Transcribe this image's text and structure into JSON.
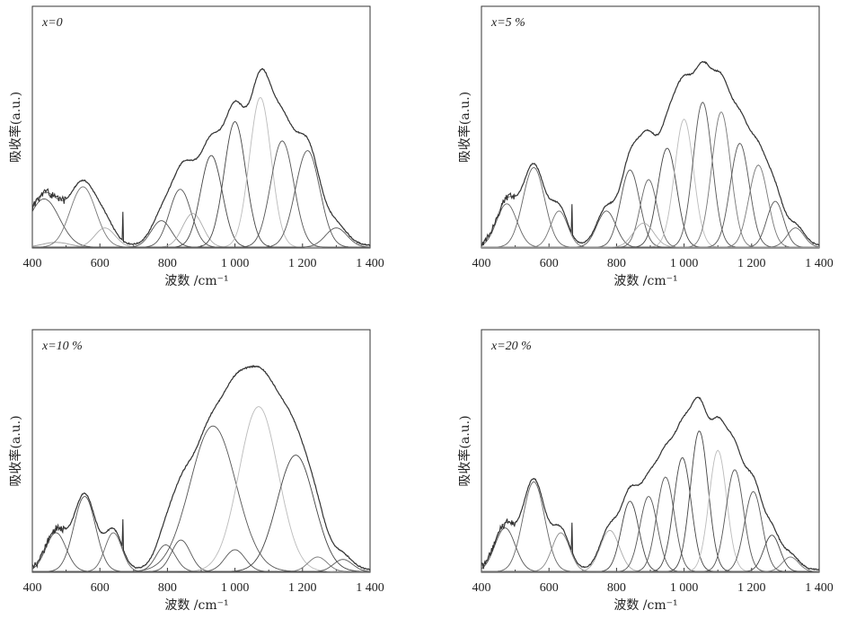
{
  "chart_data": [
    {
      "type": "line",
      "panel_label": "x=0",
      "xlabel": "波数 /cm⁻¹",
      "ylabel": "吸收率(a.u.)",
      "xlim": [
        400,
        1400
      ],
      "x_ticks": [
        400,
        600,
        800,
        1000,
        1200,
        1400
      ],
      "x_tick_labels": [
        "400",
        "600",
        "800",
        "1 000",
        "1 200",
        "1 400"
      ],
      "ylim": [
        0,
        1
      ],
      "y_ticks_shown": false,
      "fitted_peaks": [
        {
          "center": 435,
          "height": 0.2,
          "sigma": 45,
          "color": "#555555"
        },
        {
          "center": 470,
          "height": 0.02,
          "sigma": 40,
          "color": "#999999"
        },
        {
          "center": 550,
          "height": 0.25,
          "sigma": 38,
          "color": "#777777"
        },
        {
          "center": 615,
          "height": 0.08,
          "sigma": 30,
          "color": "#aaaaaa"
        },
        {
          "center": 782,
          "height": 0.11,
          "sigma": 30,
          "color": "#555555"
        },
        {
          "center": 838,
          "height": 0.24,
          "sigma": 32,
          "color": "#555555"
        },
        {
          "center": 875,
          "height": 0.14,
          "sigma": 30,
          "color": "#aaaaaa"
        },
        {
          "center": 930,
          "height": 0.38,
          "sigma": 32,
          "color": "#444444"
        },
        {
          "center": 1000,
          "height": 0.52,
          "sigma": 32,
          "color": "#444444"
        },
        {
          "center": 1075,
          "height": 0.62,
          "sigma": 32,
          "color": "#bbbbbb"
        },
        {
          "center": 1140,
          "height": 0.44,
          "sigma": 34,
          "color": "#555555"
        },
        {
          "center": 1215,
          "height": 0.4,
          "sigma": 36,
          "color": "#555555"
        },
        {
          "center": 1300,
          "height": 0.08,
          "sigma": 32,
          "color": "#555555"
        }
      ],
      "envelope_min_x": 680
    },
    {
      "type": "line",
      "panel_label": "x=5 %",
      "xlabel": "波数 /cm⁻¹",
      "ylabel": "吸收率(a.u.)",
      "xlim": [
        400,
        1400
      ],
      "x_ticks": [
        400,
        600,
        800,
        1000,
        1200,
        1400
      ],
      "x_tick_labels": [
        "400",
        "600",
        "800",
        "1 000",
        "1 200",
        "1 400"
      ],
      "ylim": [
        0,
        1
      ],
      "y_ticks_shown": false,
      "fitted_peaks": [
        {
          "center": 475,
          "height": 0.18,
          "sigma": 30,
          "color": "#666666"
        },
        {
          "center": 555,
          "height": 0.33,
          "sigma": 32,
          "color": "#666666"
        },
        {
          "center": 630,
          "height": 0.15,
          "sigma": 25,
          "color": "#777777"
        },
        {
          "center": 770,
          "height": 0.15,
          "sigma": 28,
          "color": "#555555"
        },
        {
          "center": 840,
          "height": 0.32,
          "sigma": 28,
          "color": "#555555"
        },
        {
          "center": 895,
          "height": 0.28,
          "sigma": 25,
          "color": "#666666"
        },
        {
          "center": 950,
          "height": 0.41,
          "sigma": 28,
          "color": "#444444"
        },
        {
          "center": 1000,
          "height": 0.53,
          "sigma": 28,
          "color": "#bbbbbb"
        },
        {
          "center": 1055,
          "height": 0.6,
          "sigma": 28,
          "color": "#555555"
        },
        {
          "center": 1110,
          "height": 0.56,
          "sigma": 28,
          "color": "#777777"
        },
        {
          "center": 1165,
          "height": 0.43,
          "sigma": 28,
          "color": "#555555"
        },
        {
          "center": 1220,
          "height": 0.34,
          "sigma": 28,
          "color": "#777777"
        },
        {
          "center": 1270,
          "height": 0.19,
          "sigma": 25,
          "color": "#555555"
        },
        {
          "center": 1330,
          "height": 0.08,
          "sigma": 25,
          "color": "#666666"
        },
        {
          "center": 880,
          "height": 0.1,
          "sigma": 30,
          "color": "#aaaaaa"
        }
      ],
      "envelope_min_x": 700
    },
    {
      "type": "line",
      "panel_label": "x=10 %",
      "xlabel": "波数 /cm⁻¹",
      "ylabel": "吸收率(a.u.)",
      "xlim": [
        400,
        1400
      ],
      "x_ticks": [
        400,
        600,
        800,
        1000,
        1200,
        1400
      ],
      "x_tick_labels": [
        "400",
        "600",
        "800",
        "1 000",
        "1 200",
        "1 400"
      ],
      "ylim": [
        0,
        1
      ],
      "y_ticks_shown": false,
      "fitted_peaks": [
        {
          "center": 470,
          "height": 0.16,
          "sigma": 30,
          "color": "#555555"
        },
        {
          "center": 555,
          "height": 0.31,
          "sigma": 32,
          "color": "#555555"
        },
        {
          "center": 640,
          "height": 0.16,
          "sigma": 25,
          "color": "#666666"
        },
        {
          "center": 795,
          "height": 0.11,
          "sigma": 28,
          "color": "#555555"
        },
        {
          "center": 840,
          "height": 0.13,
          "sigma": 28,
          "color": "#555555"
        },
        {
          "center": 935,
          "height": 0.6,
          "sigma": 68,
          "color": "#555555"
        },
        {
          "center": 1000,
          "height": 0.09,
          "sigma": 30,
          "color": "#555555"
        },
        {
          "center": 1070,
          "height": 0.68,
          "sigma": 58,
          "color": "#bbbbbb"
        },
        {
          "center": 1180,
          "height": 0.48,
          "sigma": 55,
          "color": "#444444"
        },
        {
          "center": 1245,
          "height": 0.06,
          "sigma": 28,
          "color": "#777777"
        },
        {
          "center": 1320,
          "height": 0.05,
          "sigma": 28,
          "color": "#555555"
        }
      ],
      "envelope_min_x": 700
    },
    {
      "type": "line",
      "panel_label": "x=20 %",
      "xlabel": "波数 /cm⁻¹",
      "ylabel": "吸收率(a.u.)",
      "xlim": [
        400,
        1400
      ],
      "x_ticks": [
        400,
        600,
        800,
        1000,
        1200,
        1400
      ],
      "x_tick_labels": [
        "400",
        "600",
        "800",
        "1 000",
        "1 200",
        "1 400"
      ],
      "ylim": [
        0,
        1
      ],
      "y_ticks_shown": false,
      "fitted_peaks": [
        {
          "center": 470,
          "height": 0.18,
          "sigma": 30,
          "color": "#555555"
        },
        {
          "center": 555,
          "height": 0.37,
          "sigma": 32,
          "color": "#666666"
        },
        {
          "center": 635,
          "height": 0.16,
          "sigma": 26,
          "color": "#888888"
        },
        {
          "center": 780,
          "height": 0.17,
          "sigma": 28,
          "color": "#aaaaaa"
        },
        {
          "center": 840,
          "height": 0.29,
          "sigma": 26,
          "color": "#444444"
        },
        {
          "center": 895,
          "height": 0.31,
          "sigma": 26,
          "color": "#555555"
        },
        {
          "center": 945,
          "height": 0.39,
          "sigma": 26,
          "color": "#555555"
        },
        {
          "center": 995,
          "height": 0.47,
          "sigma": 26,
          "color": "#444444"
        },
        {
          "center": 1045,
          "height": 0.58,
          "sigma": 26,
          "color": "#444444"
        },
        {
          "center": 1100,
          "height": 0.5,
          "sigma": 26,
          "color": "#bbbbbb"
        },
        {
          "center": 1150,
          "height": 0.42,
          "sigma": 26,
          "color": "#555555"
        },
        {
          "center": 1205,
          "height": 0.33,
          "sigma": 26,
          "color": "#555555"
        },
        {
          "center": 1260,
          "height": 0.15,
          "sigma": 24,
          "color": "#444444"
        },
        {
          "center": 1315,
          "height": 0.06,
          "sigma": 24,
          "color": "#777777"
        }
      ],
      "envelope_min_x": 700
    }
  ]
}
